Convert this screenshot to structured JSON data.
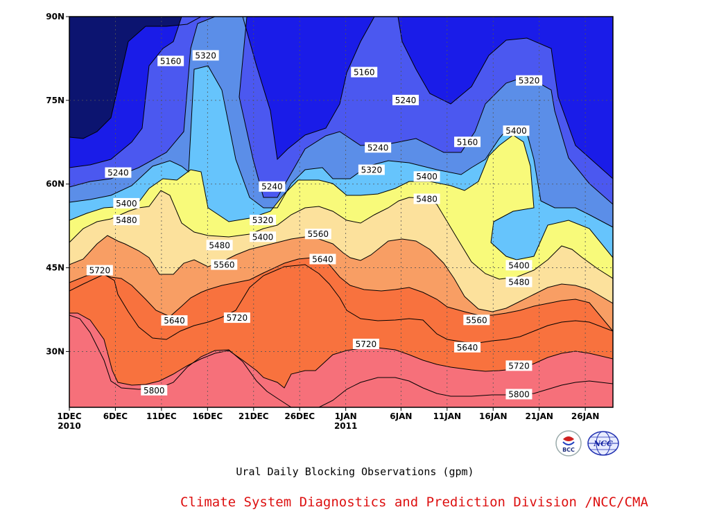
{
  "chart_data": {
    "type": "heatmap",
    "title": "Ural Daily Blocking Observations (gpm)",
    "y_ticks": [
      "90N",
      "75N",
      "60N",
      "45N",
      "30N"
    ],
    "x_ticks": [
      {
        "label": "1DEC",
        "sub": "2010"
      },
      {
        "label": "6DEC",
        "sub": ""
      },
      {
        "label": "11DEC",
        "sub": ""
      },
      {
        "label": "16DEC",
        "sub": ""
      },
      {
        "label": "21DEC",
        "sub": ""
      },
      {
        "label": "26DEC",
        "sub": ""
      },
      {
        "label": "1JAN",
        "sub": "2011"
      },
      {
        "label": "6JAN",
        "sub": ""
      },
      {
        "label": "11JAN",
        "sub": ""
      },
      {
        "label": "16JAN",
        "sub": ""
      },
      {
        "label": "21JAN",
        "sub": ""
      },
      {
        "label": "26JAN",
        "sub": ""
      }
    ],
    "contour_levels": [
      5160,
      5240,
      5320,
      5400,
      5480,
      5560,
      5640,
      5720,
      5800
    ],
    "band_colors": [
      "#0c1470",
      "#1a1ce8",
      "#4b58f0",
      "#5b8ee8",
      "#66c4fc",
      "#f8fa7a",
      "#fce19c",
      "#f89e64",
      "#f8723e",
      "#f6707a"
    ],
    "contour_labels": [
      {
        "text": "5160",
        "day": 11,
        "lat": 82
      },
      {
        "text": "5320",
        "day": 14.8,
        "lat": 83
      },
      {
        "text": "5240",
        "day": 5.3,
        "lat": 62
      },
      {
        "text": "5400",
        "day": 6.2,
        "lat": 56.5
      },
      {
        "text": "5480",
        "day": 6.2,
        "lat": 53.5
      },
      {
        "text": "5560",
        "day": 16.8,
        "lat": 45.5
      },
      {
        "text": "5720",
        "day": 3.3,
        "lat": 44.5
      },
      {
        "text": "5640",
        "day": 11.4,
        "lat": 35.5
      },
      {
        "text": "5720",
        "day": 18.2,
        "lat": 36
      },
      {
        "text": "5800",
        "day": 9.2,
        "lat": 23
      },
      {
        "text": "5480",
        "day": 16.3,
        "lat": 49
      },
      {
        "text": "5320",
        "day": 21,
        "lat": 53.5
      },
      {
        "text": "5400",
        "day": 21,
        "lat": 50.5
      },
      {
        "text": "5240",
        "day": 22,
        "lat": 59.5
      },
      {
        "text": "5560",
        "day": 27,
        "lat": 51
      },
      {
        "text": "5640",
        "day": 27.5,
        "lat": 46.5
      },
      {
        "text": "5160",
        "day": 32,
        "lat": 80
      },
      {
        "text": "5240",
        "day": 36.5,
        "lat": 75
      },
      {
        "text": "5240",
        "day": 33.5,
        "lat": 66.5
      },
      {
        "text": "5320",
        "day": 32.8,
        "lat": 62.5
      },
      {
        "text": "5400",
        "day": 38.8,
        "lat": 61.3
      },
      {
        "text": "5480",
        "day": 38.8,
        "lat": 57.3
      },
      {
        "text": "5720",
        "day": 32.2,
        "lat": 31.3
      },
      {
        "text": "5160",
        "day": 43.2,
        "lat": 67.5
      },
      {
        "text": "5640",
        "day": 43.2,
        "lat": 30.7
      },
      {
        "text": "5560",
        "day": 44.2,
        "lat": 35.6
      },
      {
        "text": "5320",
        "day": 49.9,
        "lat": 78.5
      },
      {
        "text": "5400",
        "day": 48.5,
        "lat": 69.5
      },
      {
        "text": "5400",
        "day": 48.8,
        "lat": 45.4
      },
      {
        "text": "5480",
        "day": 48.8,
        "lat": 42.4
      },
      {
        "text": "5720",
        "day": 48.8,
        "lat": 27.4
      },
      {
        "text": "5800",
        "day": 48.8,
        "lat": 22.3
      }
    ]
  },
  "credit": "Climate System Diagnostics and Prediction Division /NCC/CMA",
  "logos": [
    {
      "name": "bcc-logo",
      "text": "BCC",
      "icon": "bcc-logo-icon"
    },
    {
      "name": "ncc-logo",
      "text": "NCC",
      "icon": "ncc-globe-icon"
    }
  ]
}
